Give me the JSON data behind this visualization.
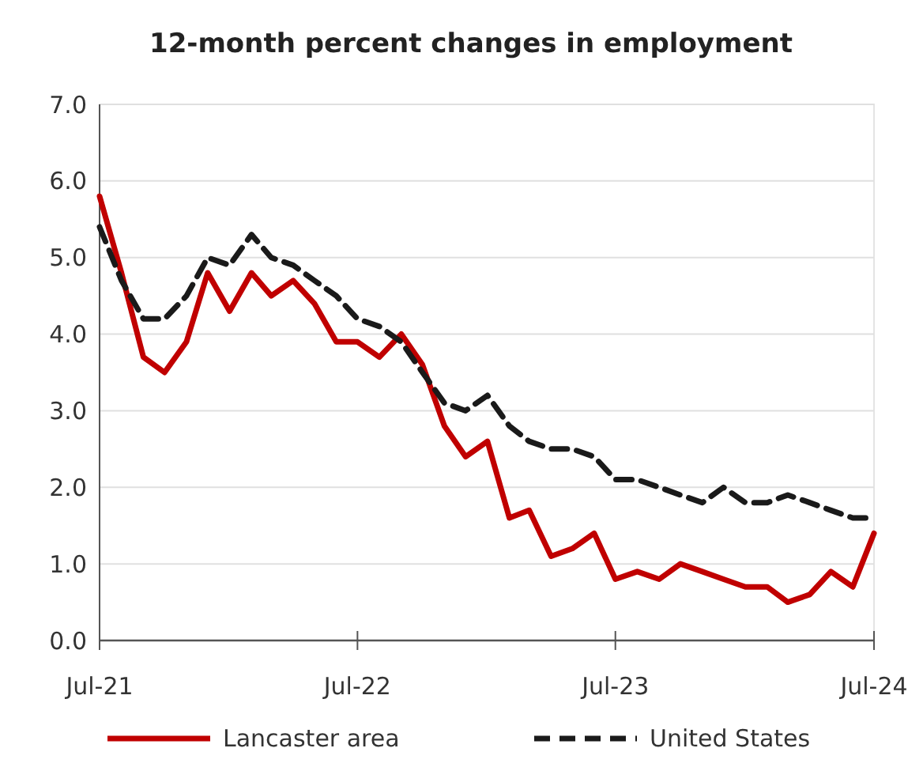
{
  "chart_data": {
    "type": "line",
    "title": "12-month percent changes in employment",
    "x": [
      "2021-07",
      "2021-08",
      "2021-09",
      "2021-10",
      "2021-11",
      "2021-12",
      "2022-01",
      "2022-02",
      "2022-03",
      "2022-04",
      "2022-05",
      "2022-06",
      "2022-07",
      "2022-08",
      "2022-09",
      "2022-10",
      "2022-11",
      "2022-12",
      "2023-01",
      "2023-02",
      "2023-03",
      "2023-04",
      "2023-05",
      "2023-06",
      "2023-07",
      "2023-08",
      "2023-09",
      "2023-10",
      "2023-11",
      "2023-12",
      "2024-01",
      "2024-02",
      "2024-03",
      "2024-04",
      "2024-05",
      "2024-06",
      "2024-07"
    ],
    "series": [
      {
        "name": "Lancaster area",
        "color": "#c00000",
        "line_style": "solid",
        "values": [
          5.8,
          4.8,
          3.7,
          3.5,
          3.9,
          4.8,
          4.3,
          4.8,
          4.5,
          4.7,
          4.4,
          3.9,
          3.9,
          3.7,
          4.0,
          3.6,
          2.8,
          2.4,
          2.6,
          1.6,
          1.7,
          1.1,
          1.2,
          1.4,
          0.8,
          0.9,
          0.8,
          1.0,
          0.9,
          0.8,
          0.7,
          0.7,
          0.5,
          0.6,
          0.9,
          0.7,
          1.4
        ]
      },
      {
        "name": "United States",
        "color": "#1a1a1a",
        "line_style": "dashed",
        "values": [
          5.4,
          4.7,
          4.2,
          4.2,
          4.5,
          5.0,
          4.9,
          5.3,
          5.0,
          4.9,
          4.7,
          4.5,
          4.2,
          4.1,
          3.9,
          3.5,
          3.1,
          3.0,
          3.2,
          2.8,
          2.6,
          2.5,
          2.5,
          2.4,
          2.1,
          2.1,
          2.0,
          1.9,
          1.8,
          2.0,
          1.8,
          1.8,
          1.9,
          1.8,
          1.7,
          1.6,
          1.6
        ]
      }
    ],
    "xlim": [
      "2021-07",
      "2024-07"
    ],
    "xticks": [
      {
        "value": "2021-07",
        "label": "Jul-21"
      },
      {
        "value": "2022-07",
        "label": "Jul-22"
      },
      {
        "value": "2023-07",
        "label": "Jul-23"
      },
      {
        "value": "2024-07",
        "label": "Jul-24"
      }
    ],
    "ylim": [
      0,
      7
    ],
    "yticks": [
      {
        "value": 0,
        "label": "0.0"
      },
      {
        "value": 1,
        "label": "1.0"
      },
      {
        "value": 2,
        "label": "2.0"
      },
      {
        "value": 3,
        "label": "3.0"
      },
      {
        "value": 4,
        "label": "4.0"
      },
      {
        "value": 5,
        "label": "5.0"
      },
      {
        "value": 6,
        "label": "6.0"
      },
      {
        "value": 7,
        "label": "7.0"
      }
    ],
    "grid": "y",
    "legend": "bottom",
    "marker": "none"
  }
}
